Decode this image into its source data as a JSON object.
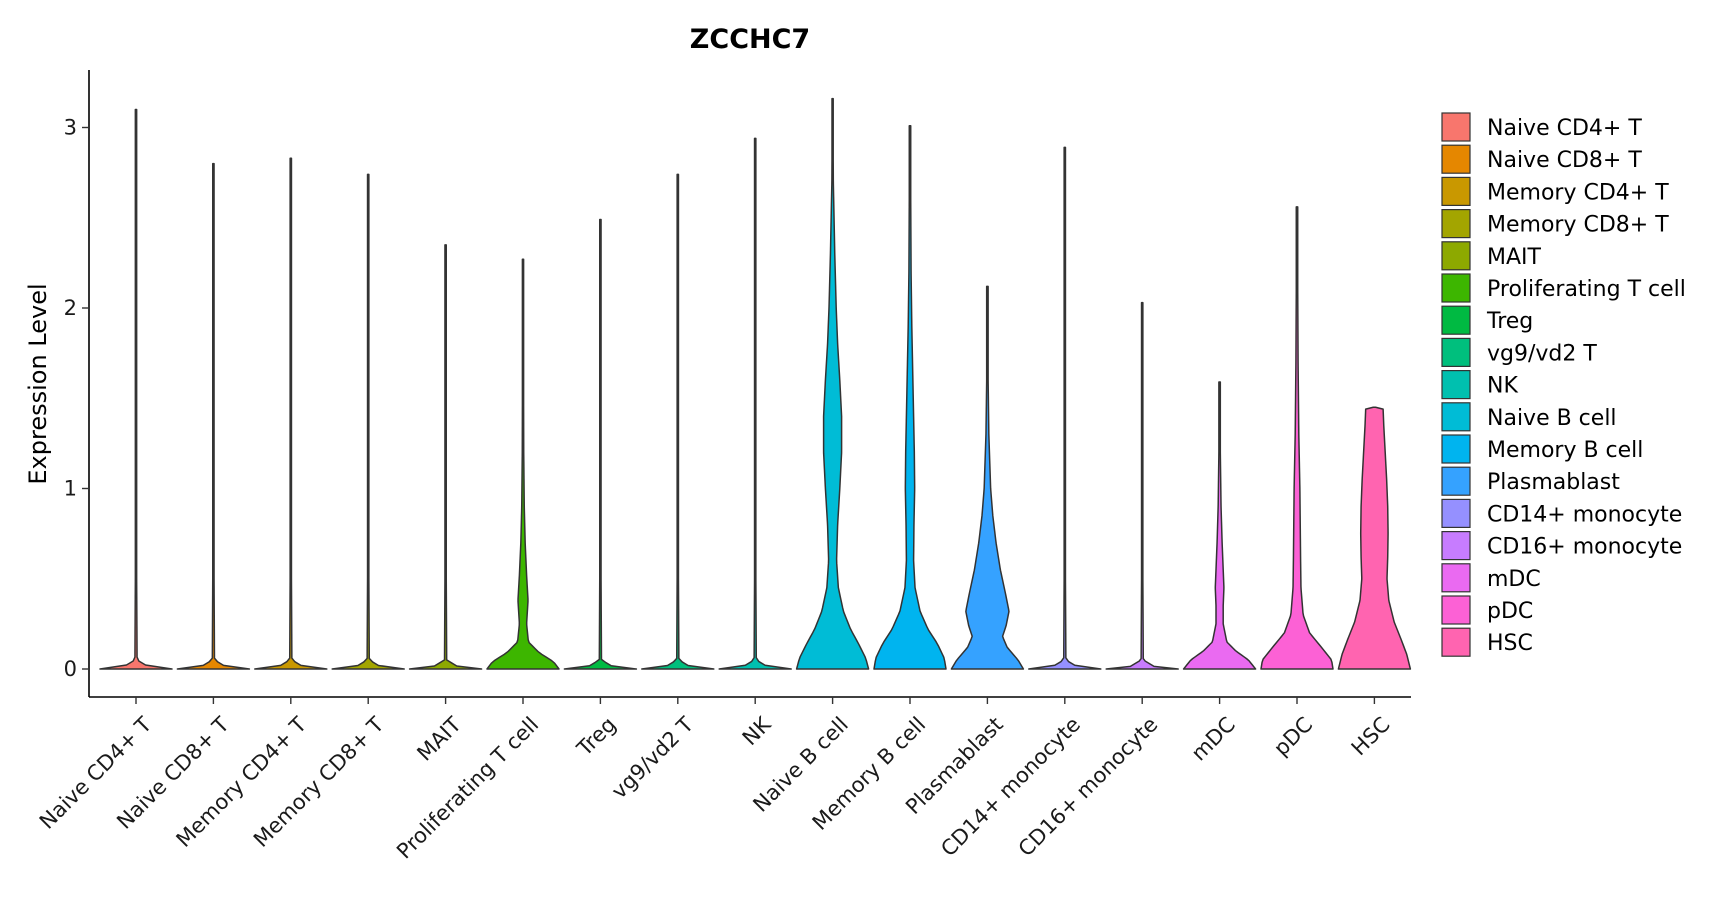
{
  "chart_data": {
    "type": "violin",
    "title": "ZCCHC7",
    "xlabel": "",
    "ylabel": "Expression Level",
    "ylim": [
      -0.15,
      3.3
    ],
    "yticks": [
      0,
      1,
      2,
      3
    ],
    "categories": [
      "Naive CD4+ T",
      "Naive CD8+ T",
      "Memory CD4+ T",
      "Memory CD8+ T",
      "MAIT",
      "Proliferating T cell",
      "Treg",
      "vg9/vd2 T",
      "NK",
      "Naive B cell",
      "Memory B cell",
      "Plasmablast",
      "CD14+ monocyte",
      "CD16+ monocyte",
      "mDC",
      "pDC",
      "HSC"
    ],
    "colors": [
      "#F8766D",
      "#E58700",
      "#C99800",
      "#A3A500",
      "#6BB100",
      "#00BA38",
      "#00BF7D",
      "#00C0AF",
      "#00BCD8",
      "#00B0F6",
      "#619CFF",
      "#B983FF",
      "#E76BF3",
      "#FD61D1",
      "#FF67A4",
      "#F8766D",
      "#FF6A98"
    ],
    "legend_colors": [
      "#F8766D",
      "#E58700",
      "#C99800",
      "#A3A500",
      "#8DA900",
      "#3DB600",
      "#00BA42",
      "#00BF7D",
      "#00C0AF",
      "#00BCD6",
      "#00B4EF",
      "#35A2FF",
      "#9590FF",
      "#C77CFF",
      "#EA6AF1",
      "#FC61D5",
      "#FF64B0"
    ],
    "max_values": [
      3.1,
      2.8,
      2.83,
      2.74,
      2.35,
      2.27,
      2.49,
      2.74,
      2.94,
      3.16,
      3.01,
      2.12,
      2.89,
      2.03,
      1.59,
      2.56,
      1.45
    ],
    "legend_position": "right"
  }
}
